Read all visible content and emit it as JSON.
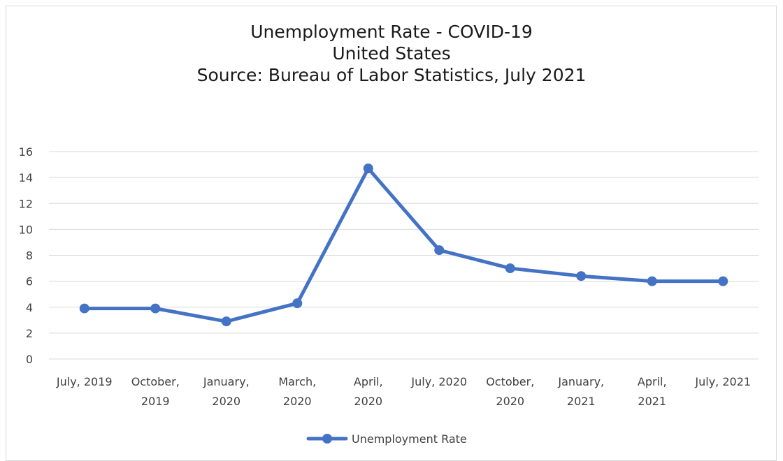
{
  "chart_data": {
    "type": "line",
    "title": "Unemployment Rate - COVID-19",
    "subtitle": "United States",
    "source": "Source: Bureau of Labor Statistics, July 2021",
    "xlabel": "",
    "ylabel": "",
    "ylim": [
      0,
      16
    ],
    "yticks": [
      0,
      2,
      4,
      6,
      8,
      10,
      12,
      14,
      16
    ],
    "grid": true,
    "legend_position": "bottom",
    "categories": [
      [
        "July, 2019"
      ],
      [
        "October,",
        "2019"
      ],
      [
        "January,",
        "2020"
      ],
      [
        "March,",
        "2020"
      ],
      [
        "April,",
        "2020"
      ],
      [
        "July, 2020"
      ],
      [
        "October,",
        "2020"
      ],
      [
        "January,",
        "2021"
      ],
      [
        "April,",
        "2021"
      ],
      [
        "July, 2021"
      ]
    ],
    "series": [
      {
        "name": "Unemployment Rate",
        "color": "#4472c4",
        "values": [
          3.9,
          3.9,
          2.9,
          4.3,
          14.7,
          8.4,
          7.0,
          6.4,
          6.0,
          6.0
        ]
      }
    ]
  }
}
